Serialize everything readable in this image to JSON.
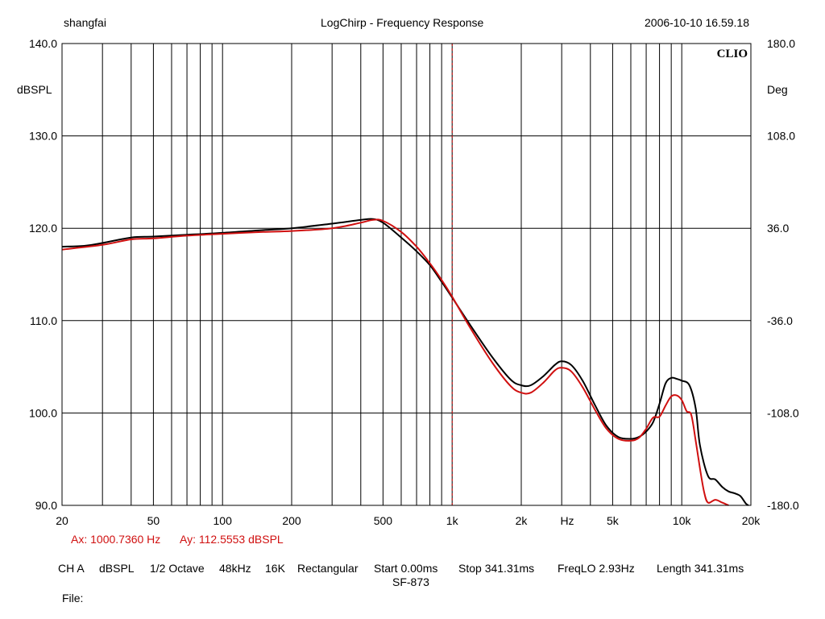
{
  "header": {
    "user": "shangfai",
    "title": "LogChirp - Frequency Response",
    "timestamp": "2006-10-10 16.59.18"
  },
  "logo": "CLIO",
  "cursor": {
    "ax": "Ax: 1000.7360 Hz",
    "ay": "Ay: 112.5553 dBSPL"
  },
  "settings": {
    "channel": "CH A",
    "unit": "dBSPL",
    "smoothing": "1/2 Octave",
    "sample_rate": "48kHz",
    "size": "16K",
    "window": "Rectangular",
    "start": "Start 0.00ms",
    "stop": "Stop 341.31ms",
    "freqlo": "FreqLO 2.93Hz",
    "length": "Length 341.31ms",
    "name": "SF-873",
    "file_label": "File:"
  },
  "chart_data": {
    "type": "line",
    "title": "LogChirp - Frequency Response",
    "xlabel": "Hz",
    "ylabel": "dBSPL",
    "y2label": "Deg",
    "xscale": "log",
    "xlim": [
      20,
      20000
    ],
    "ylim": [
      90,
      140
    ],
    "y2lim": [
      -180,
      180
    ],
    "grid": true,
    "x_ticks": [
      {
        "value": 20,
        "label": "20"
      },
      {
        "value": 50,
        "label": "50"
      },
      {
        "value": 100,
        "label": "100"
      },
      {
        "value": 200,
        "label": "200"
      },
      {
        "value": 500,
        "label": "500"
      },
      {
        "value": 1000,
        "label": "1k"
      },
      {
        "value": 2000,
        "label": "2k"
      },
      {
        "value": 5000,
        "label": "5k"
      },
      {
        "value": 10000,
        "label": "10k"
      },
      {
        "value": 20000,
        "label": "20k"
      }
    ],
    "x_unit_label": "Hz",
    "y_ticks": [
      "90.0",
      "100.0",
      "110.0",
      "120.0",
      "130.0",
      "140.0"
    ],
    "y2_ticks": [
      "-180.0",
      "-108.0",
      "-36.0",
      "36.0",
      "108.0",
      "180.0"
    ],
    "cursor_x": 1000.736,
    "series": [
      {
        "color": "#000000",
        "points": [
          [
            20,
            118.0
          ],
          [
            25,
            118.1
          ],
          [
            30,
            118.4
          ],
          [
            40,
            119.0
          ],
          [
            50,
            119.1
          ],
          [
            70,
            119.3
          ],
          [
            100,
            119.5
          ],
          [
            150,
            119.8
          ],
          [
            200,
            120.0
          ],
          [
            300,
            120.5
          ],
          [
            400,
            120.9
          ],
          [
            450,
            121.0
          ],
          [
            500,
            120.6
          ],
          [
            600,
            119.0
          ],
          [
            700,
            117.5
          ],
          [
            800,
            116.0
          ],
          [
            900,
            114.2
          ],
          [
            1000,
            112.5
          ],
          [
            1200,
            109.5
          ],
          [
            1500,
            106.0
          ],
          [
            1800,
            103.6
          ],
          [
            2000,
            103.0
          ],
          [
            2200,
            103.0
          ],
          [
            2500,
            104.0
          ],
          [
            2800,
            105.2
          ],
          [
            3000,
            105.6
          ],
          [
            3300,
            105.2
          ],
          [
            3700,
            103.5
          ],
          [
            4200,
            100.8
          ],
          [
            4700,
            98.6
          ],
          [
            5300,
            97.4
          ],
          [
            6000,
            97.2
          ],
          [
            6500,
            97.4
          ],
          [
            7000,
            98.0
          ],
          [
            7500,
            99.0
          ],
          [
            8000,
            101.0
          ],
          [
            8500,
            103.2
          ],
          [
            9000,
            103.8
          ],
          [
            9500,
            103.7
          ],
          [
            10000,
            103.5
          ],
          [
            10800,
            103.0
          ],
          [
            11500,
            100.5
          ],
          [
            12000,
            96.5
          ],
          [
            13000,
            93.2
          ],
          [
            14000,
            92.8
          ],
          [
            15000,
            92.0
          ],
          [
            16000,
            91.5
          ],
          [
            17000,
            91.3
          ],
          [
            18000,
            91.0
          ],
          [
            19000,
            90.2
          ],
          [
            19500,
            90.0
          ]
        ]
      },
      {
        "color": "#d01010",
        "points": [
          [
            20,
            117.7
          ],
          [
            30,
            118.2
          ],
          [
            40,
            118.8
          ],
          [
            50,
            118.9
          ],
          [
            70,
            119.2
          ],
          [
            100,
            119.4
          ],
          [
            150,
            119.6
          ],
          [
            200,
            119.7
          ],
          [
            300,
            120.0
          ],
          [
            400,
            120.6
          ],
          [
            450,
            120.9
          ],
          [
            500,
            120.8
          ],
          [
            600,
            119.6
          ],
          [
            700,
            118.0
          ],
          [
            800,
            116.2
          ],
          [
            900,
            114.4
          ],
          [
            1000,
            112.6
          ],
          [
            1200,
            109.2
          ],
          [
            1500,
            105.4
          ],
          [
            1800,
            102.9
          ],
          [
            2000,
            102.2
          ],
          [
            2200,
            102.2
          ],
          [
            2500,
            103.3
          ],
          [
            2800,
            104.6
          ],
          [
            3000,
            104.9
          ],
          [
            3300,
            104.5
          ],
          [
            3700,
            102.8
          ],
          [
            4200,
            100.3
          ],
          [
            4700,
            98.3
          ],
          [
            5300,
            97.2
          ],
          [
            6000,
            97.0
          ],
          [
            6500,
            97.3
          ],
          [
            7000,
            98.3
          ],
          [
            7500,
            99.5
          ],
          [
            8000,
            99.6
          ],
          [
            8500,
            100.8
          ],
          [
            9000,
            101.8
          ],
          [
            9500,
            101.9
          ],
          [
            10000,
            101.4
          ],
          [
            10500,
            100.2
          ],
          [
            11000,
            99.8
          ],
          [
            11500,
            97.0
          ],
          [
            12000,
            94.0
          ],
          [
            12500,
            91.5
          ],
          [
            13000,
            90.3
          ],
          [
            14000,
            90.6
          ],
          [
            15000,
            90.3
          ],
          [
            16000,
            90.0
          ]
        ]
      }
    ]
  }
}
